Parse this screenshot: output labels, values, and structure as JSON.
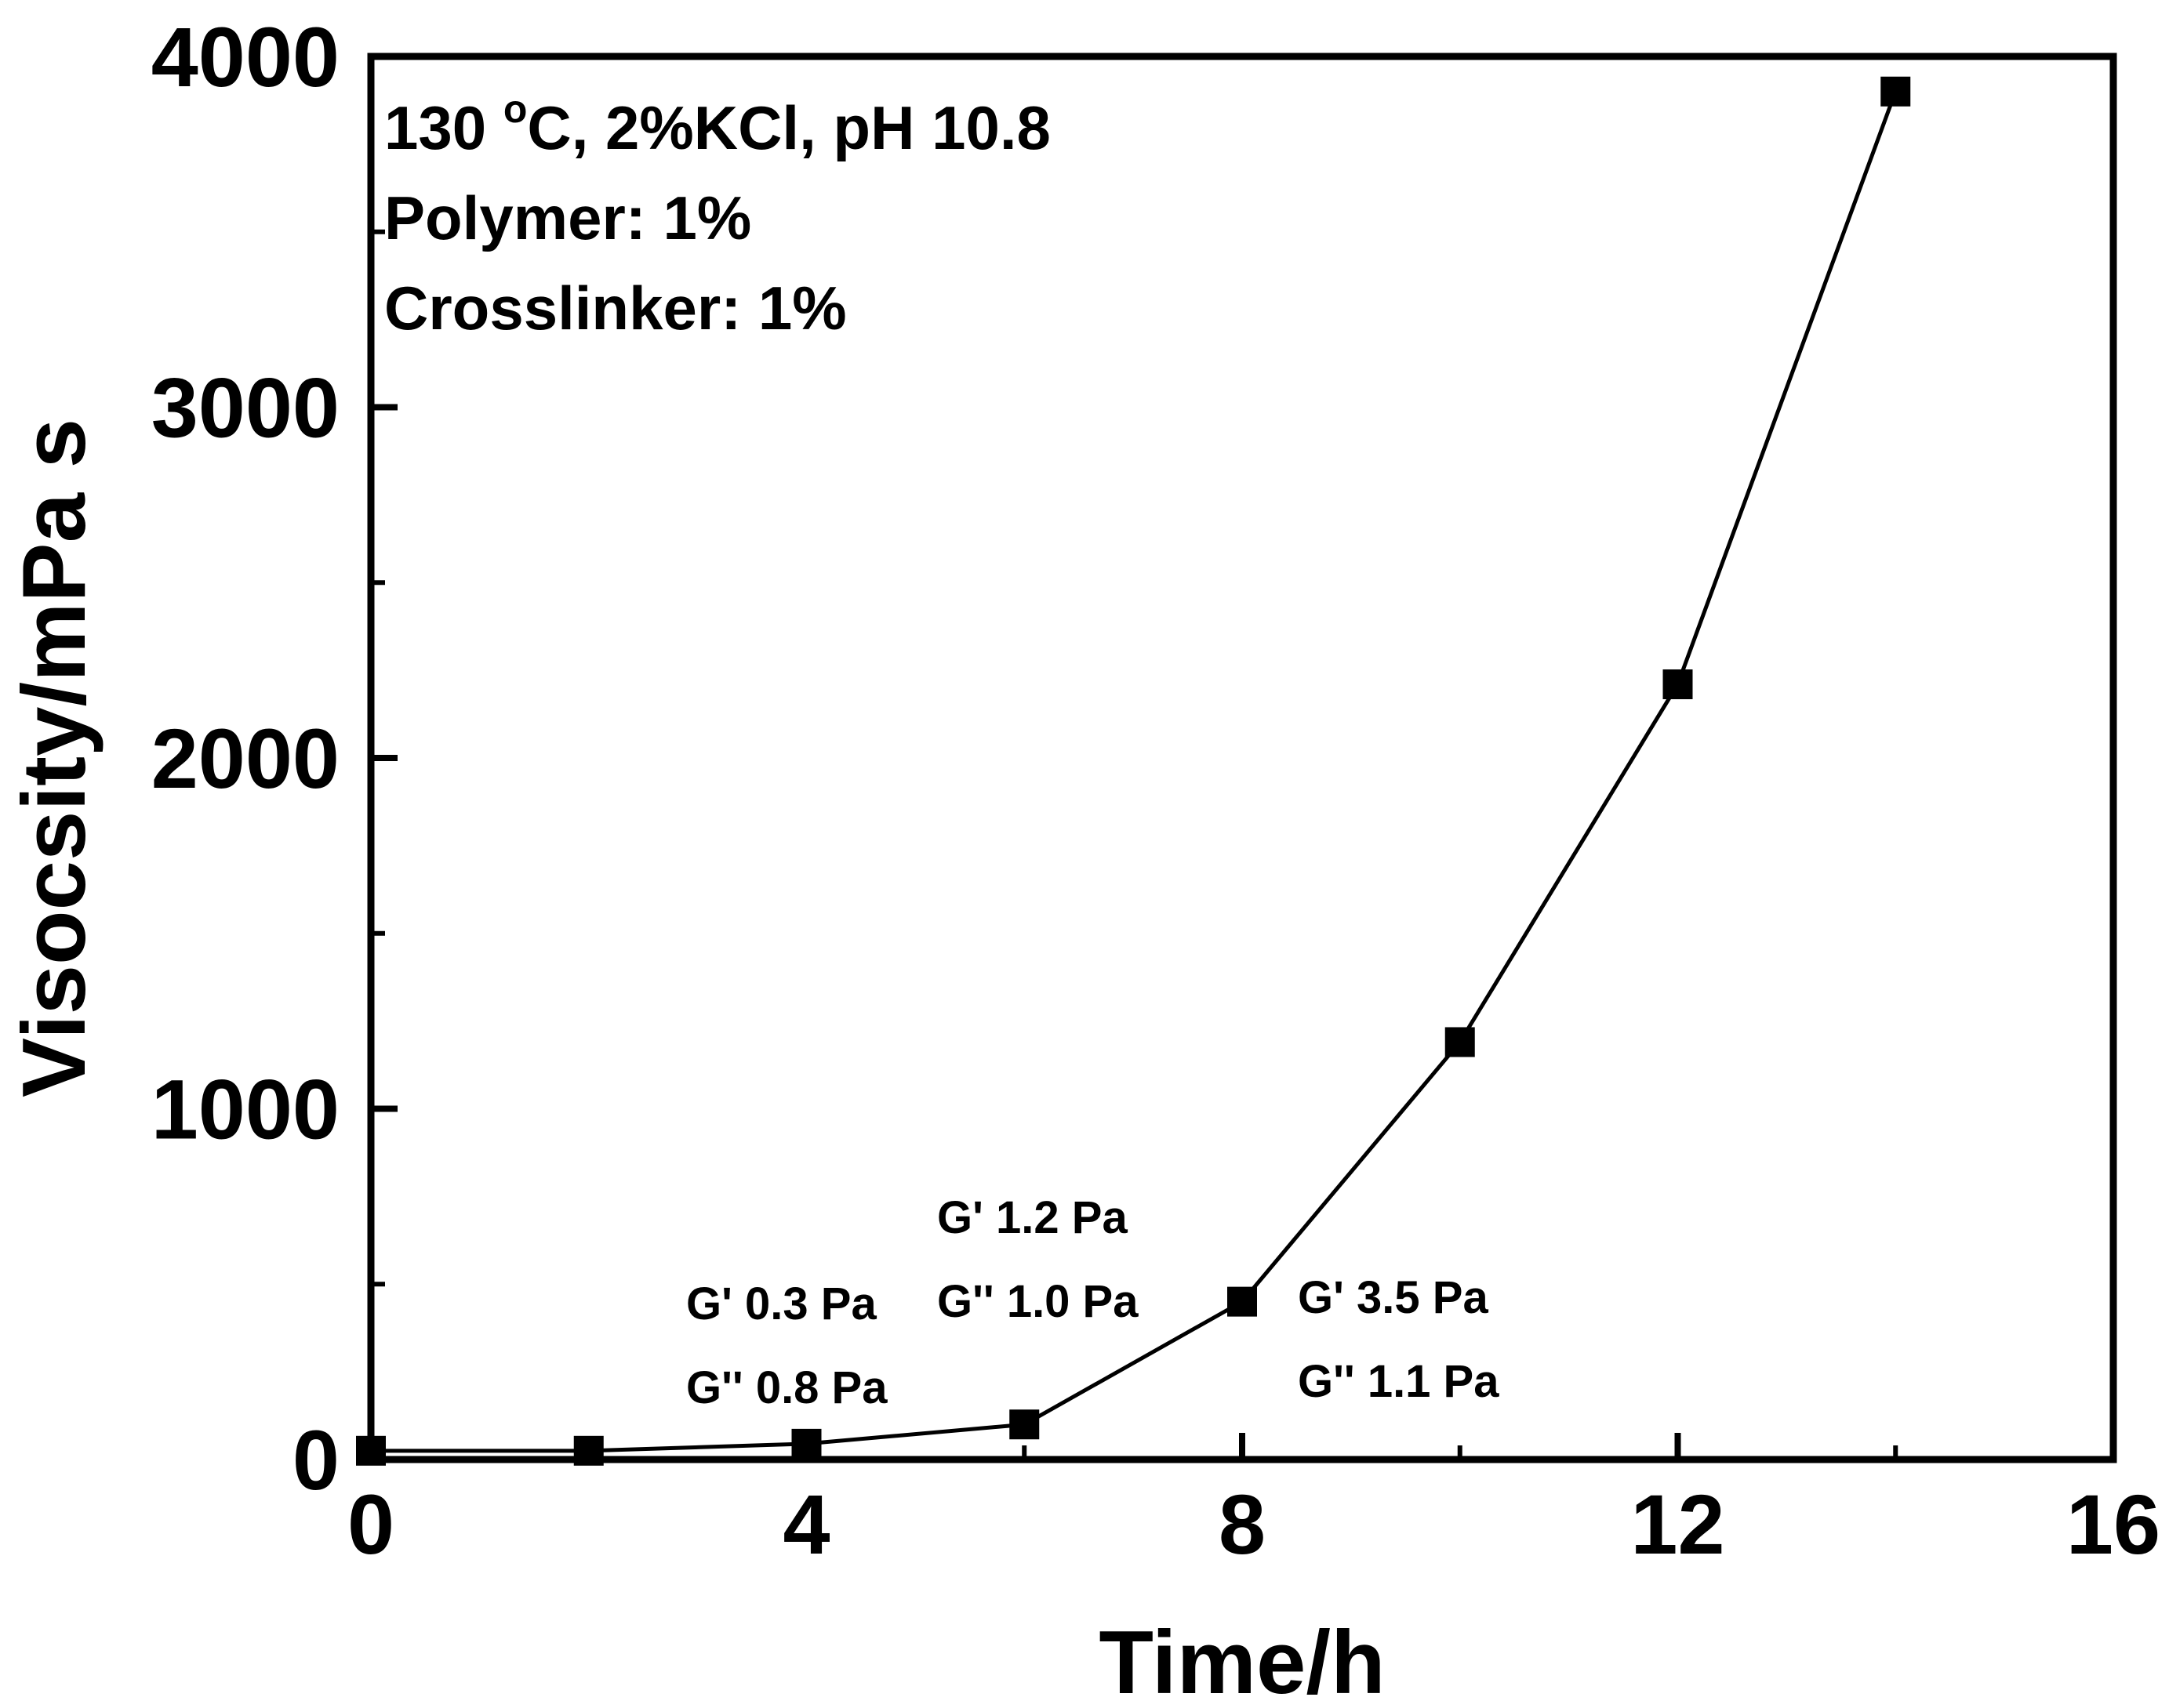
{
  "chart_data": {
    "type": "line",
    "title": "",
    "xlabel": "Time/h",
    "ylabel": "Visocsity/mPa s",
    "xlim": [
      0,
      16
    ],
    "ylim": [
      0,
      4000
    ],
    "xticks": [
      "0",
      "4",
      "8",
      "12",
      "16"
    ],
    "yticks": [
      "0",
      "1000",
      "2000",
      "3000",
      "4000"
    ],
    "grid": false,
    "marker": "square",
    "series": [
      {
        "name": "Viscosity",
        "x": [
          0,
          2,
          4,
          6,
          8,
          10,
          12,
          14
        ],
        "y": [
          25,
          25,
          45,
          100,
          450,
          1190,
          2210,
          3900
        ]
      }
    ],
    "conditions": {
      "line1_prefix": "130 ",
      "line1_sup": "o",
      "line1_suffix": "C, 2%KCl, pH 10.8",
      "line2": "Polymer: 1%",
      "line3": "Crosslinker: 1%"
    },
    "annotations": [
      {
        "x": 4,
        "g_prime": "G' 0.3 Pa",
        "g_double_prime": "G'' 0.8 Pa"
      },
      {
        "x": 6,
        "g_prime": "G' 1.2 Pa",
        "g_double_prime": "G'' 1.0 Pa"
      },
      {
        "x": 8,
        "g_prime": "G' 3.5 Pa",
        "g_double_prime": "G'' 1.1 Pa"
      }
    ],
    "colors": {
      "line": "#000000",
      "marker": "#000000",
      "axis": "#000000"
    }
  }
}
